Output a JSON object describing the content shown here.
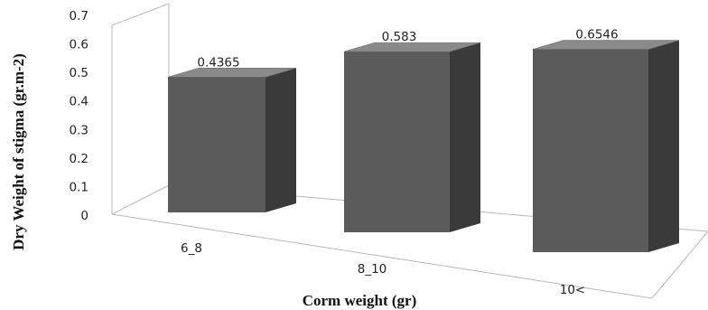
{
  "chart_data": {
    "type": "bar",
    "style": "3d",
    "categories": [
      "6_8",
      "8_10",
      "10<"
    ],
    "values": [
      0.4365,
      0.583,
      0.6546
    ],
    "data_labels": [
      "0.4365",
      "0.583",
      "0.6546"
    ],
    "xlabel": "Corm weight (gr)",
    "ylabel": "Dry Weight of stigma (gr.m-2)",
    "ylim": [
      0,
      0.7
    ],
    "yticks": [
      "0",
      "0.1",
      "0.2",
      "0.3",
      "0.4",
      "0.5",
      "0.6",
      "0.7"
    ],
    "grid": false,
    "legend": "none",
    "colors": {
      "bar_front": "#5b5b5b",
      "bar_top": "#8a8a8a",
      "bar_side": "#3a3a3a",
      "frame": "#b8b8b8"
    }
  }
}
